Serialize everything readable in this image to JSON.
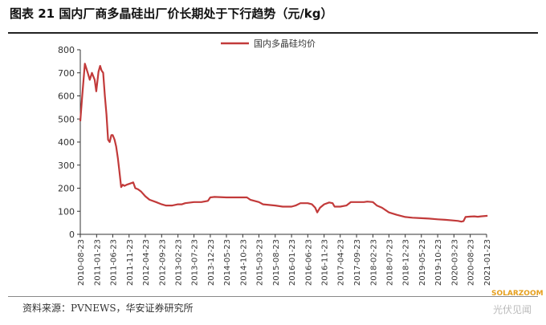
{
  "figure": {
    "title": "图表 21 国内厂商多晶硅出厂价长期处于下行趋势（元/kg）",
    "source": "资料来源：PVNEWS，华安证券研究所",
    "watermark": "光伏见闻",
    "watermark_badge": "SOLARZOOM"
  },
  "chart_data": {
    "type": "line",
    "title": "",
    "xlabel": "",
    "ylabel": "",
    "ylim": [
      0,
      800
    ],
    "yticks": [
      0,
      100,
      200,
      300,
      400,
      500,
      600,
      700,
      800
    ],
    "xticks": [
      "2010-08-23",
      "2011-01-23",
      "2011-06-23",
      "2011-11-23",
      "2012-04-23",
      "2012-09-23",
      "2013-02-23",
      "2013-07-23",
      "2013-12-23",
      "2014-05-23",
      "2014-10-23",
      "2015-03-23",
      "2015-08-23",
      "2016-01-23",
      "2016-06-23",
      "2016-11-23",
      "2017-04-23",
      "2017-09-23",
      "2018-02-23",
      "2018-07-23",
      "2018-12-23",
      "2019-05-23",
      "2019-10-23",
      "2020-03-23",
      "2020-08-23",
      "2021-01-23"
    ],
    "grid": false,
    "legend_position": "top-center",
    "series": [
      {
        "name": "国内多晶硅均价",
        "color": "#c23a3a",
        "points": [
          [
            "2010-08-23",
            490
          ],
          [
            "2010-09-10",
            600
          ],
          [
            "2010-10-05",
            740
          ],
          [
            "2010-11-01",
            700
          ],
          [
            "2010-11-20",
            670
          ],
          [
            "2010-12-10",
            700
          ],
          [
            "2011-01-05",
            670
          ],
          [
            "2011-01-20",
            620
          ],
          [
            "2011-02-10",
            705
          ],
          [
            "2011-02-25",
            730
          ],
          [
            "2011-03-10",
            710
          ],
          [
            "2011-03-25",
            700
          ],
          [
            "2011-04-10",
            600
          ],
          [
            "2011-04-25",
            520
          ],
          [
            "2011-05-10",
            410
          ],
          [
            "2011-05-25",
            400
          ],
          [
            "2011-06-10",
            430
          ],
          [
            "2011-06-23",
            430
          ],
          [
            "2011-07-10",
            410
          ],
          [
            "2011-07-25",
            380
          ],
          [
            "2011-08-10",
            330
          ],
          [
            "2011-08-25",
            270
          ],
          [
            "2011-09-10",
            205
          ],
          [
            "2011-09-25",
            215
          ],
          [
            "2011-10-10",
            210
          ],
          [
            "2011-11-01",
            215
          ],
          [
            "2011-12-01",
            220
          ],
          [
            "2012-01-01",
            225
          ],
          [
            "2012-01-20",
            200
          ],
          [
            "2012-02-15",
            195
          ],
          [
            "2012-03-15",
            185
          ],
          [
            "2012-04-23",
            165
          ],
          [
            "2012-06-01",
            150
          ],
          [
            "2012-08-01",
            140
          ],
          [
            "2012-09-23",
            130
          ],
          [
            "2012-11-01",
            125
          ],
          [
            "2013-01-01",
            125
          ],
          [
            "2013-02-23",
            130
          ],
          [
            "2013-04-01",
            130
          ],
          [
            "2013-05-01",
            135
          ],
          [
            "2013-07-23",
            140
          ],
          [
            "2013-10-01",
            140
          ],
          [
            "2013-12-01",
            145
          ],
          [
            "2013-12-23",
            160
          ],
          [
            "2014-02-01",
            162
          ],
          [
            "2014-05-23",
            160
          ],
          [
            "2014-08-01",
            160
          ],
          [
            "2014-10-23",
            160
          ],
          [
            "2014-12-01",
            160
          ],
          [
            "2015-01-01",
            150
          ],
          [
            "2015-03-23",
            140
          ],
          [
            "2015-05-01",
            130
          ],
          [
            "2015-08-23",
            125
          ],
          [
            "2015-11-01",
            120
          ],
          [
            "2016-01-23",
            120
          ],
          [
            "2016-03-01",
            125
          ],
          [
            "2016-04-15",
            135
          ],
          [
            "2016-06-23",
            135
          ],
          [
            "2016-08-01",
            130
          ],
          [
            "2016-09-01",
            115
          ],
          [
            "2016-09-20",
            95
          ],
          [
            "2016-10-15",
            115
          ],
          [
            "2016-11-23",
            130
          ],
          [
            "2017-01-10",
            138
          ],
          [
            "2017-02-10",
            135
          ],
          [
            "2017-03-01",
            120
          ],
          [
            "2017-04-23",
            120
          ],
          [
            "2017-06-20",
            125
          ],
          [
            "2017-08-01",
            140
          ],
          [
            "2017-09-23",
            140
          ],
          [
            "2017-12-01",
            140
          ],
          [
            "2018-01-01",
            142
          ],
          [
            "2018-02-23",
            140
          ],
          [
            "2018-04-01",
            125
          ],
          [
            "2018-05-20",
            115
          ],
          [
            "2018-07-23",
            95
          ],
          [
            "2018-10-01",
            85
          ],
          [
            "2018-12-23",
            75
          ],
          [
            "2019-03-01",
            72
          ],
          [
            "2019-05-23",
            70
          ],
          [
            "2019-08-01",
            68
          ],
          [
            "2019-10-23",
            65
          ],
          [
            "2020-01-01",
            63
          ],
          [
            "2020-03-23",
            60
          ],
          [
            "2020-05-01",
            58
          ],
          [
            "2020-06-01",
            55
          ],
          [
            "2020-06-20",
            57
          ],
          [
            "2020-07-10",
            75
          ],
          [
            "2020-08-23",
            77
          ],
          [
            "2020-10-01",
            78
          ],
          [
            "2020-11-01",
            76
          ],
          [
            "2020-12-01",
            78
          ],
          [
            "2021-01-23",
            80
          ],
          [
            "2021-02-01",
            80
          ]
        ]
      }
    ]
  }
}
